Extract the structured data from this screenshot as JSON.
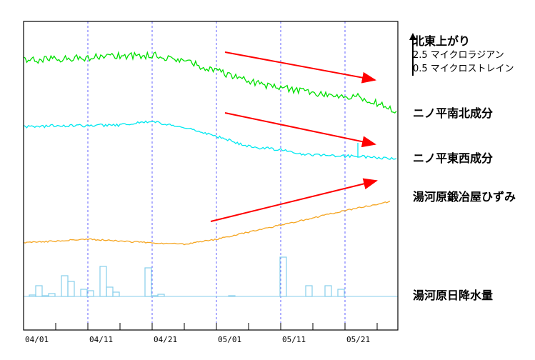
{
  "chart_data": {
    "type": "line",
    "x_ticks": [
      "04/01",
      "04/11",
      "04/21",
      "05/01",
      "05/11",
      "05/21"
    ],
    "x_range_days": [
      0,
      58
    ],
    "grid": "dashed vertical every 10 days",
    "scale_note": {
      "title": "北東上がり",
      "line1": "2.5 マイクロラジアン",
      "line2": "0.5 マイクロストレイン"
    },
    "series": [
      {
        "name": "ニノ平南北成分",
        "color": "#00e000",
        "points": [
          [
            0,
            0
          ],
          [
            7,
            3
          ],
          [
            14,
            7
          ],
          [
            21,
            7
          ],
          [
            25,
            0
          ],
          [
            30,
            -15
          ],
          [
            38,
            -35
          ],
          [
            45,
            -45
          ],
          [
            52,
            -50
          ],
          [
            58,
            -70
          ]
        ]
      },
      {
        "name": "ニノ平東西成分",
        "color": "#00e8f0",
        "points": [
          [
            0,
            0
          ],
          [
            8,
            1
          ],
          [
            15,
            2
          ],
          [
            20,
            7
          ],
          [
            28,
            -8
          ],
          [
            35,
            -28
          ],
          [
            40,
            -33
          ],
          [
            44,
            -40
          ],
          [
            52,
            -42
          ],
          [
            58,
            -45
          ]
        ],
        "spike": {
          "day": 52,
          "value": -23
        }
      },
      {
        "name": "湯河原鍛冶屋ひずみ",
        "color": "#f5a623",
        "points": [
          [
            0,
            0
          ],
          [
            10,
            5
          ],
          [
            18,
            1
          ],
          [
            25,
            -2
          ],
          [
            30,
            5
          ],
          [
            40,
            25
          ],
          [
            50,
            45
          ],
          [
            57,
            58
          ]
        ]
      },
      {
        "name": "湯河原日降水量",
        "type": "bar",
        "color": "#87ceeb",
        "values": [
          [
            1,
            2
          ],
          [
            2,
            15
          ],
          [
            3,
            1
          ],
          [
            4,
            4
          ],
          [
            6,
            29
          ],
          [
            7,
            21
          ],
          [
            9,
            10
          ],
          [
            10,
            8
          ],
          [
            12,
            42
          ],
          [
            13,
            13
          ],
          [
            14,
            6
          ],
          [
            19,
            40
          ],
          [
            20,
            1
          ],
          [
            21,
            3
          ],
          [
            32,
            1
          ],
          [
            40,
            55
          ],
          [
            44,
            15
          ],
          [
            47,
            15
          ],
          [
            49,
            10
          ]
        ]
      }
    ],
    "arrows_color": "#ff0000"
  }
}
